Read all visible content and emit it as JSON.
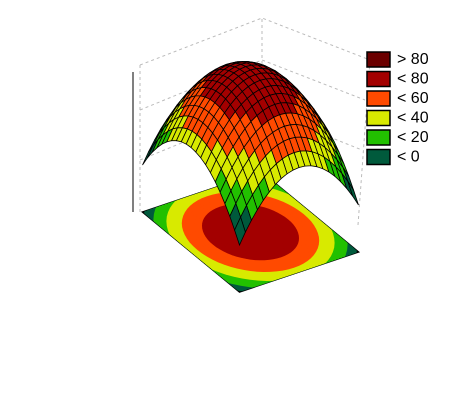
{
  "chart_data": {
    "type": "surface",
    "legend": [
      {
        "name": "> 80",
        "color": "#6b0000"
      },
      {
        "name": "< 80",
        "color": "#a30000"
      },
      {
        "name": "< 60",
        "color": "#ff4a00"
      },
      {
        "name": "< 40",
        "color": "#d8ea00"
      },
      {
        "name": "< 20",
        "color": "#22c000"
      },
      {
        "name": "< 0",
        "color": "#005a3c"
      }
    ]
  }
}
